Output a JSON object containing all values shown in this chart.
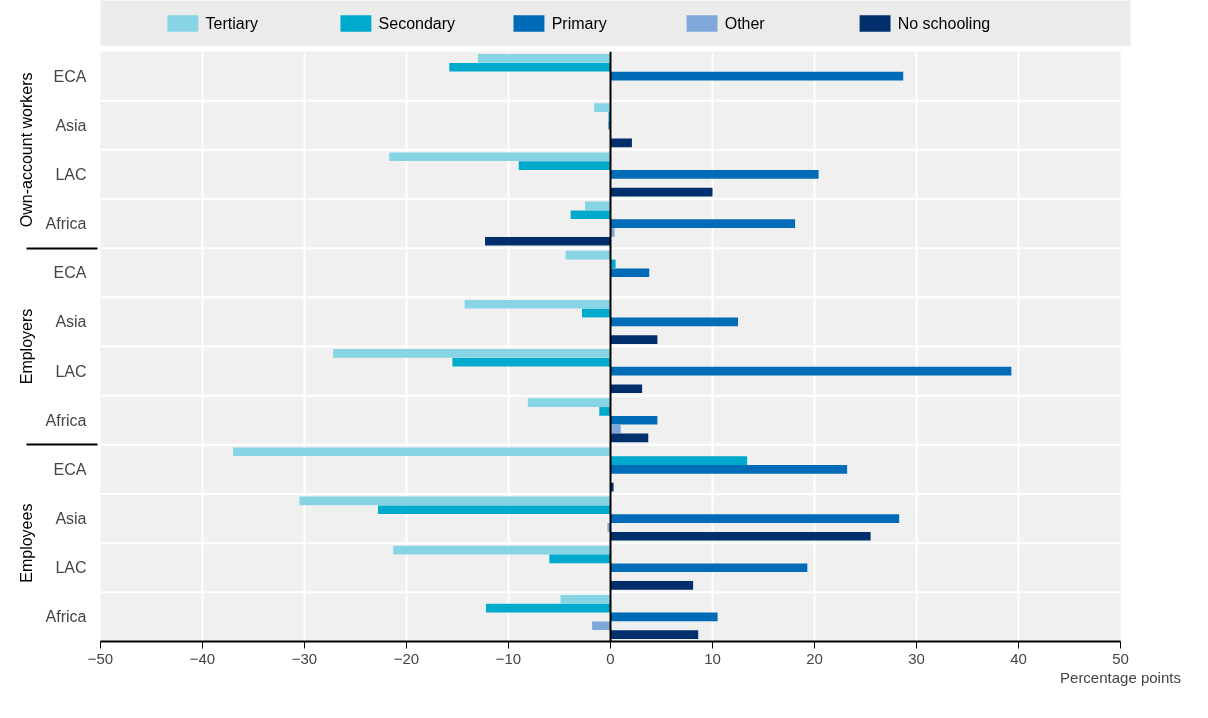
{
  "chart_data": {
    "type": "bar",
    "orientation": "horizontal",
    "xlabel": "Percentage points",
    "categories": [
      "ECA",
      "Asia",
      "LAC",
      "Africa",
      "ECA",
      "Asia",
      "LAC",
      "Africa",
      "ECA",
      "Asia",
      "LAC",
      "Africa"
    ],
    "annotations": [
      "Own-account workers",
      "Employers",
      "Employees"
    ],
    "series": [
      {
        "name": "Tertiary",
        "color": "#86d4e4",
        "values": [
          -13.0,
          -1.6,
          -21.7,
          -2.5,
          -4.4,
          -14.3,
          -27.2,
          -8.1,
          -37.0,
          -30.5,
          -21.3,
          -4.9
        ]
      },
      {
        "name": "Secondary",
        "color": "#00aacc",
        "values": [
          -15.8,
          -0.2,
          -9.0,
          -3.9,
          0.5,
          -2.8,
          -15.5,
          -1.1,
          13.4,
          -22.8,
          -6.0,
          -12.2
        ]
      },
      {
        "name": "Primary",
        "color": "#006bb6",
        "values": [
          28.7,
          -0.2,
          20.4,
          18.1,
          3.8,
          12.5,
          39.3,
          4.6,
          23.2,
          28.3,
          19.3,
          10.5
        ]
      },
      {
        "name": "Other",
        "color": "#7fa8d9",
        "values": [
          null,
          null,
          null,
          0.4,
          null,
          null,
          null,
          1.0,
          null,
          -0.3,
          null,
          -1.8
        ]
      },
      {
        "name": "No schooling",
        "color": "#002f6c",
        "values": [
          null,
          2.1,
          10.0,
          -12.3,
          null,
          4.6,
          3.1,
          3.7,
          0.3,
          25.5,
          8.1,
          8.6
        ]
      }
    ],
    "xlim": [
      -50,
      50
    ],
    "xticks": [
      -50,
      -40,
      -30,
      -20,
      -10,
      0,
      10,
      20,
      30,
      40,
      50
    ],
    "grid": true,
    "legend": "top"
  }
}
